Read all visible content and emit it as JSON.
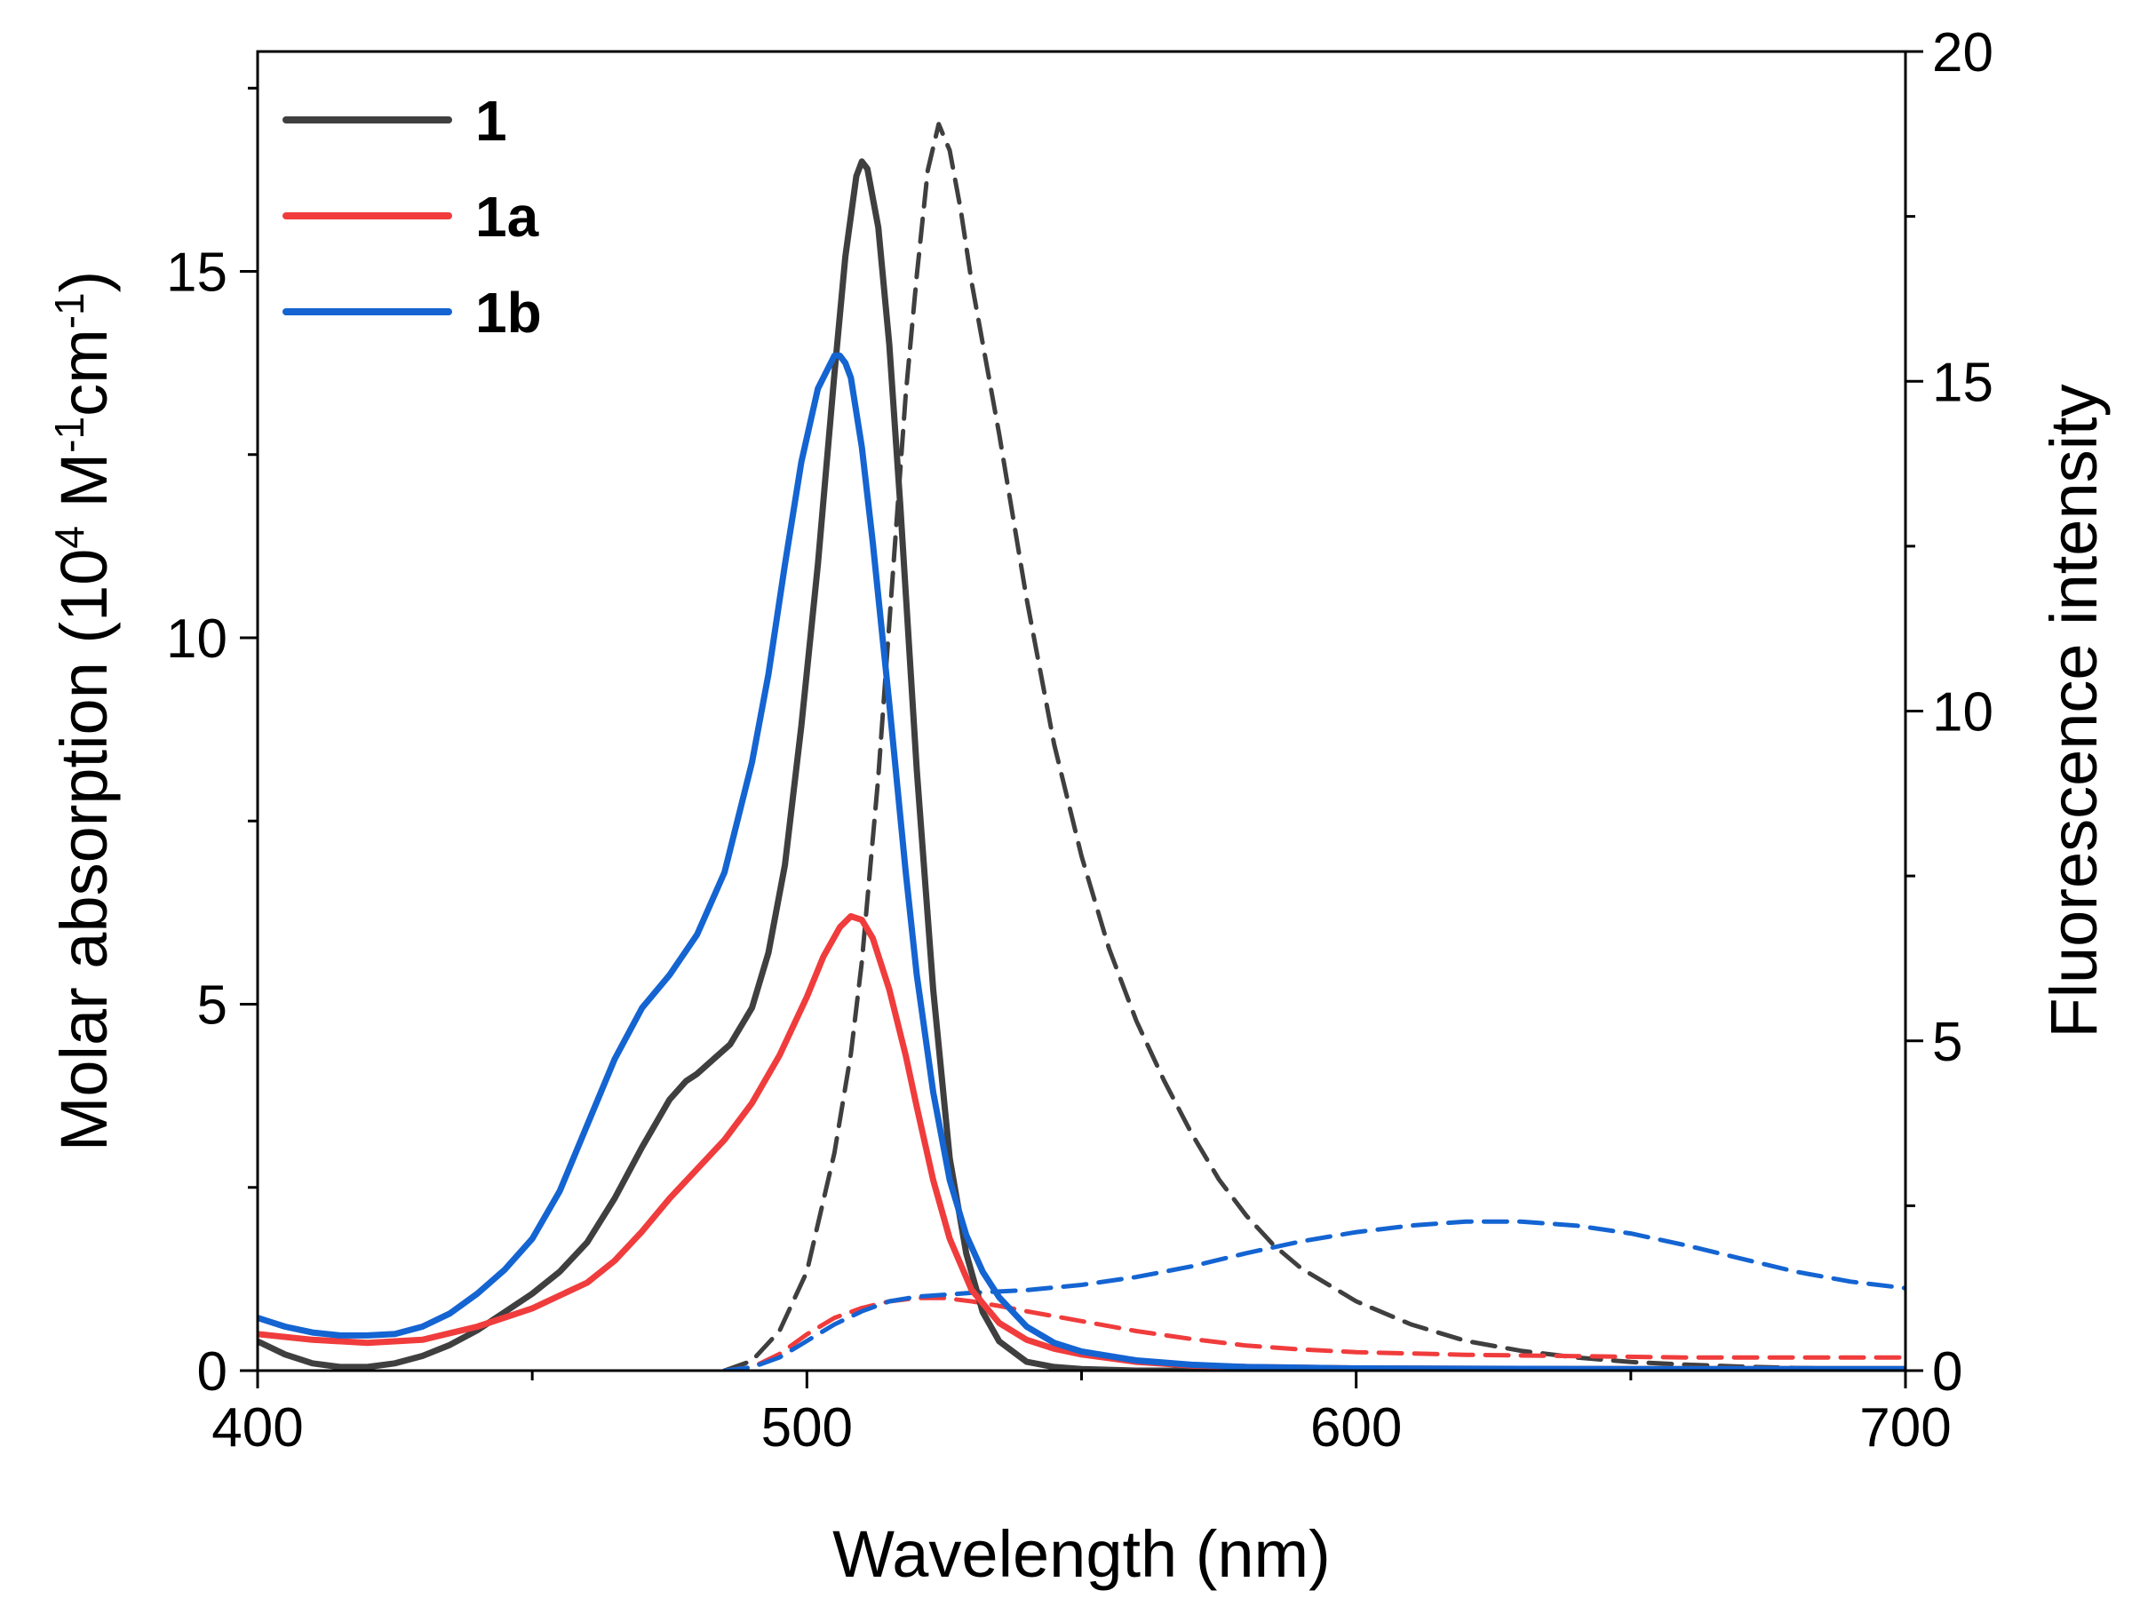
{
  "chart_data": {
    "type": "line",
    "xlabel": "Wavelength (nm)",
    "ylabel_left": {
      "prefix": "Molar absorption (10",
      "sup1": "4",
      "mid1": " M",
      "sup2": "-1",
      "mid2": "cm",
      "sup3": "-1",
      "suffix": ")"
    },
    "ylabel_right": "Fluorescence intensity",
    "xlim": [
      400,
      700
    ],
    "ylim_left": [
      0,
      18
    ],
    "ylim_right": [
      0,
      20
    ],
    "x_ticks": [
      400,
      500,
      600,
      700
    ],
    "y_ticks_left": [
      0,
      5,
      10,
      15
    ],
    "y_ticks_right": [
      0,
      5,
      10,
      15,
      20
    ],
    "legend_position": "top-left",
    "series": [
      {
        "name": "1",
        "color": "#3f3f3f",
        "style": "solid",
        "axis": "left",
        "x": [
          400,
          405,
          410,
          415,
          420,
          425,
          430,
          435,
          440,
          445,
          450,
          455,
          460,
          465,
          470,
          475,
          478,
          480,
          483,
          486,
          490,
          493,
          496,
          499,
          502,
          505,
          507,
          509,
          510,
          511,
          513,
          515,
          517,
          520,
          523,
          526,
          529,
          532,
          535,
          540,
          545,
          550,
          560,
          580,
          600,
          650,
          700
        ],
        "values": [
          0.4,
          0.22,
          0.1,
          0.05,
          0.05,
          0.1,
          0.2,
          0.35,
          0.55,
          0.8,
          1.05,
          1.35,
          1.75,
          2.35,
          3.05,
          3.7,
          3.95,
          4.05,
          4.25,
          4.45,
          4.95,
          5.7,
          6.9,
          8.8,
          11.0,
          13.6,
          15.2,
          16.3,
          16.5,
          16.4,
          15.6,
          14.0,
          11.8,
          8.2,
          5.2,
          2.9,
          1.6,
          0.8,
          0.4,
          0.12,
          0.05,
          0.02,
          0.0,
          0.0,
          0.0,
          0.0,
          0.0
        ]
      },
      {
        "name": "1a",
        "color": "#f03c3c",
        "style": "solid",
        "axis": "left",
        "x": [
          400,
          410,
          420,
          430,
          440,
          450,
          460,
          465,
          470,
          475,
          480,
          485,
          490,
          495,
          500,
          503,
          506,
          508,
          510,
          512,
          515,
          518,
          520,
          523,
          526,
          530,
          535,
          540,
          545,
          550,
          560,
          570,
          580,
          600,
          650,
          700
        ],
        "values": [
          0.5,
          0.42,
          0.38,
          0.42,
          0.6,
          0.85,
          1.2,
          1.5,
          1.9,
          2.35,
          2.75,
          3.15,
          3.65,
          4.3,
          5.1,
          5.65,
          6.05,
          6.2,
          6.15,
          5.9,
          5.2,
          4.3,
          3.6,
          2.6,
          1.8,
          1.1,
          0.65,
          0.42,
          0.3,
          0.22,
          0.12,
          0.07,
          0.05,
          0.03,
          0.02,
          0.02
        ]
      },
      {
        "name": "1b",
        "color": "#1464d2",
        "style": "solid",
        "axis": "left",
        "x": [
          400,
          405,
          410,
          415,
          420,
          425,
          430,
          435,
          440,
          445,
          450,
          455,
          460,
          465,
          470,
          475,
          480,
          485,
          490,
          493,
          496,
          499,
          502,
          505,
          506,
          507,
          508,
          510,
          512,
          515,
          518,
          520,
          523,
          526,
          529,
          532,
          535,
          540,
          545,
          550,
          560,
          570,
          580,
          600,
          650,
          700
        ],
        "values": [
          0.72,
          0.6,
          0.52,
          0.48,
          0.48,
          0.5,
          0.6,
          0.78,
          1.05,
          1.38,
          1.8,
          2.45,
          3.35,
          4.25,
          4.95,
          5.4,
          5.95,
          6.8,
          8.3,
          9.5,
          11.0,
          12.4,
          13.4,
          13.85,
          13.85,
          13.75,
          13.55,
          12.6,
          11.3,
          9.1,
          6.8,
          5.4,
          3.8,
          2.6,
          1.85,
          1.35,
          1.0,
          0.6,
          0.38,
          0.26,
          0.14,
          0.08,
          0.05,
          0.03,
          0.02,
          0.02
        ]
      },
      {
        "name": "1 fluorescence",
        "color": "#3f3f3f",
        "style": "dashed",
        "axis": "right",
        "x": [
          485,
          490,
          495,
          500,
          505,
          508,
          510,
          513,
          516,
          518,
          520,
          522,
          524,
          526,
          528,
          530,
          535,
          540,
          545,
          550,
          555,
          560,
          565,
          570,
          575,
          580,
          585,
          590,
          600,
          610,
          620,
          630,
          640,
          650,
          660,
          670,
          680,
          690,
          700
        ],
        "values": [
          0.0,
          0.15,
          0.6,
          1.5,
          3.3,
          4.8,
          6.2,
          9.0,
          12.5,
          14.8,
          16.6,
          18.2,
          18.9,
          18.5,
          17.6,
          16.5,
          14.2,
          11.7,
          9.5,
          7.8,
          6.4,
          5.3,
          4.4,
          3.6,
          2.9,
          2.35,
          1.9,
          1.55,
          1.05,
          0.7,
          0.45,
          0.3,
          0.2,
          0.13,
          0.09,
          0.06,
          0.04,
          0.03,
          0.02
        ]
      },
      {
        "name": "1a fluorescence",
        "color": "#f03c3c",
        "style": "dashed",
        "axis": "right",
        "x": [
          485,
          490,
          495,
          500,
          505,
          510,
          515,
          520,
          525,
          530,
          535,
          540,
          550,
          560,
          570,
          580,
          590,
          600,
          620,
          640,
          660,
          680,
          700
        ],
        "values": [
          0.0,
          0.05,
          0.25,
          0.55,
          0.8,
          0.95,
          1.05,
          1.1,
          1.1,
          1.05,
          0.98,
          0.9,
          0.75,
          0.6,
          0.48,
          0.38,
          0.32,
          0.28,
          0.24,
          0.22,
          0.2,
          0.2,
          0.2
        ]
      },
      {
        "name": "1b fluorescence",
        "color": "#1464d2",
        "style": "dashed",
        "axis": "right",
        "x": [
          485,
          490,
          495,
          500,
          505,
          510,
          515,
          520,
          525,
          530,
          540,
          550,
          560,
          570,
          580,
          590,
          600,
          610,
          620,
          630,
          640,
          650,
          660,
          670,
          680,
          690,
          700
        ],
        "values": [
          0.0,
          0.05,
          0.2,
          0.45,
          0.7,
          0.9,
          1.05,
          1.12,
          1.15,
          1.18,
          1.22,
          1.3,
          1.42,
          1.58,
          1.78,
          1.96,
          2.1,
          2.2,
          2.26,
          2.26,
          2.2,
          2.08,
          1.9,
          1.7,
          1.5,
          1.35,
          1.25
        ]
      }
    ],
    "legend": [
      {
        "label": "1",
        "color": "#3f3f3f"
      },
      {
        "label": "1a",
        "color": "#f03c3c"
      },
      {
        "label": "1b",
        "color": "#1464d2"
      }
    ]
  }
}
